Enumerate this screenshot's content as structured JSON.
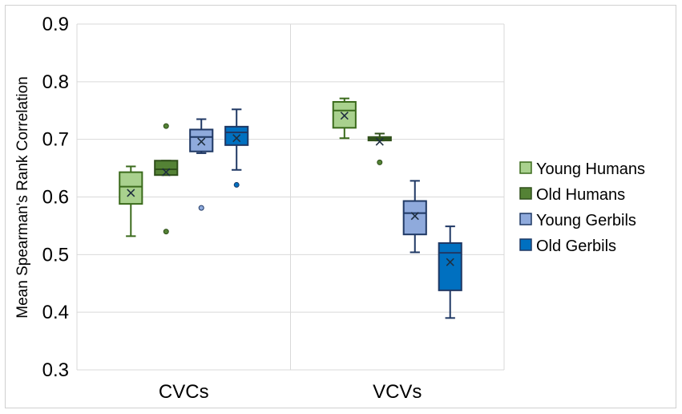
{
  "chart_data": {
    "type": "box",
    "title": "",
    "xlabel": "",
    "ylabel": "Mean Spearman's Rank Correlation",
    "ylim": [
      0.3,
      0.9
    ],
    "yticks": [
      "0.3",
      "0.4",
      "0.5",
      "0.6",
      "0.7",
      "0.8",
      "0.9"
    ],
    "categories": [
      "CVCs",
      "VCVs"
    ],
    "legend_position": "right",
    "series": [
      {
        "name": "Young Humans",
        "fill": "#a9d18e",
        "stroke": "#3b6b1c",
        "boxes": [
          {
            "min": 0.532,
            "q1": 0.588,
            "median": 0.618,
            "q3": 0.643,
            "max": 0.653,
            "mean": 0.607,
            "outliers": []
          },
          {
            "min": 0.702,
            "q1": 0.72,
            "median": 0.75,
            "q3": 0.765,
            "max": 0.771,
            "mean": 0.741,
            "outliers": []
          }
        ]
      },
      {
        "name": "Old Humans",
        "fill": "#548235",
        "stroke": "#2f4f1a",
        "boxes": [
          {
            "min": 0.638,
            "q1": 0.638,
            "median": 0.648,
            "q3": 0.663,
            "max": 0.663,
            "mean": 0.643,
            "outliers": [
              0.723,
              0.54
            ]
          },
          {
            "min": 0.698,
            "q1": 0.698,
            "median": 0.701,
            "q3": 0.704,
            "max": 0.71,
            "mean": 0.696,
            "outliers": [
              0.66
            ]
          }
        ]
      },
      {
        "name": "Young Gerbils",
        "fill": "#8faadc",
        "stroke": "#1f3864",
        "boxes": [
          {
            "min": 0.676,
            "q1": 0.679,
            "median": 0.704,
            "q3": 0.717,
            "max": 0.735,
            "mean": 0.696,
            "outliers": [
              0.581
            ]
          },
          {
            "min": 0.504,
            "q1": 0.535,
            "median": 0.572,
            "q3": 0.593,
            "max": 0.628,
            "mean": 0.567,
            "outliers": []
          }
        ]
      },
      {
        "name": "Old Gerbils",
        "fill": "#0070c0",
        "stroke": "#1f3864",
        "boxes": [
          {
            "min": 0.647,
            "q1": 0.69,
            "median": 0.712,
            "q3": 0.722,
            "max": 0.752,
            "mean": 0.702,
            "outliers": [
              0.621
            ]
          },
          {
            "min": 0.39,
            "q1": 0.438,
            "median": 0.503,
            "q3": 0.52,
            "max": 0.549,
            "mean": 0.487,
            "outliers": []
          }
        ]
      }
    ]
  }
}
